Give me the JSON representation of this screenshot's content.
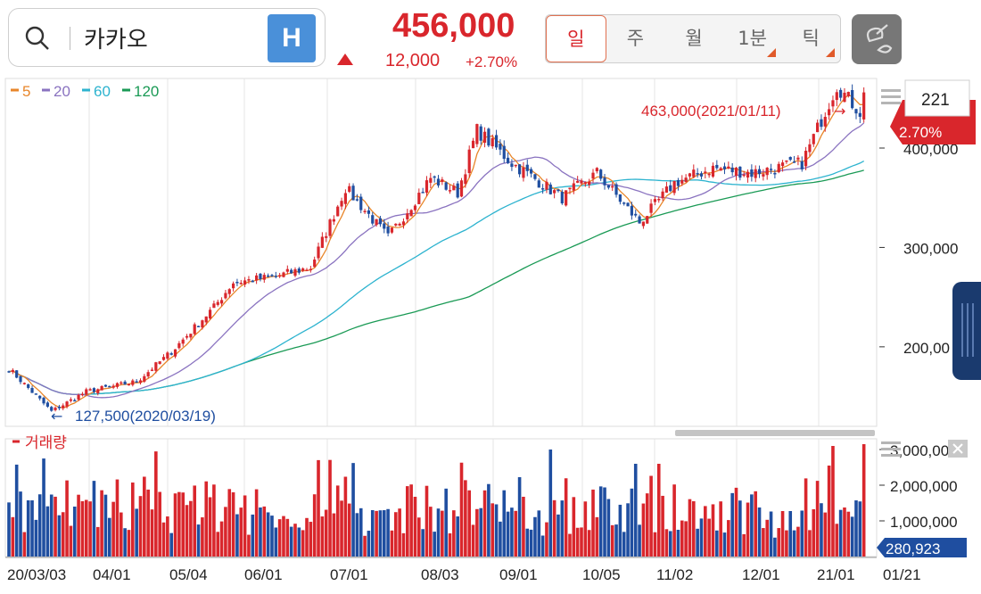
{
  "header": {
    "search_label": "카카오",
    "h_button": "H",
    "price": "456,000",
    "change": "12,000",
    "change_rate": "+2.70%",
    "periods": [
      "일",
      "주",
      "월",
      "1분",
      "틱"
    ],
    "active_period": "일",
    "badge_count": "221",
    "badge_change": "2.70%",
    "volume_legend": "거래량",
    "current_volume": "280,923"
  },
  "colors": {
    "up": "#d9262c",
    "down": "#1f4ea0",
    "ma5": "#e8862a",
    "ma20": "#8a73c0",
    "ma60": "#2db3cf",
    "ma120": "#1a9a55"
  },
  "icons": [
    "search-icon",
    "menu-icon",
    "close-icon",
    "drawing-tool-icon",
    "grip-icon"
  ],
  "chart_data": [
    {
      "type": "candlestick",
      "title": "카카오",
      "legend": [
        "5",
        "20",
        "60",
        "120"
      ],
      "x_ticks": [
        "20/03/03",
        "04/01",
        "05/04",
        "06/01",
        "07/01",
        "08/03",
        "09/01",
        "10/05",
        "11/02",
        "12/01",
        "21/01",
        "01/21"
      ],
      "y_ticks": [
        "400,000",
        "300,000",
        "200,00"
      ],
      "ylim": [
        120000,
        470000
      ],
      "annotations": [
        {
          "text": "463,000(2021/01/11)",
          "value": 463000
        },
        {
          "text": "127,500(2020/03/19)",
          "value": 127500
        }
      ],
      "key_values": {
        "high": 463000,
        "low": 127500,
        "last_close": 456000,
        "change": 12000,
        "change_pct": 2.7
      },
      "close_path": [
        {
          "m": "2020-03-03",
          "close": 178000
        },
        {
          "m": "2020-03-19",
          "close": 135000
        },
        {
          "m": "2020-04-01",
          "close": 155000
        },
        {
          "m": "2020-04-20",
          "close": 165000
        },
        {
          "m": "2020-05-04",
          "close": 195000
        },
        {
          "m": "2020-05-20",
          "close": 240000
        },
        {
          "m": "2020-05-27",
          "close": 265000
        },
        {
          "m": "2020-06-10",
          "close": 270000
        },
        {
          "m": "2020-06-26",
          "close": 280000
        },
        {
          "m": "2020-07-08",
          "close": 360000
        },
        {
          "m": "2020-07-24",
          "close": 310000
        },
        {
          "m": "2020-08-10",
          "close": 370000
        },
        {
          "m": "2020-08-20",
          "close": 355000
        },
        {
          "m": "2020-08-28",
          "close": 418000
        },
        {
          "m": "2020-09-10",
          "close": 385000
        },
        {
          "m": "2020-09-28",
          "close": 350000
        },
        {
          "m": "2020-10-12",
          "close": 375000
        },
        {
          "m": "2020-10-28",
          "close": 325000
        },
        {
          "m": "2020-11-10",
          "close": 365000
        },
        {
          "m": "2020-11-25",
          "close": 380000
        },
        {
          "m": "2020-12-10",
          "close": 375000
        },
        {
          "m": "2020-12-28",
          "close": 385000
        },
        {
          "m": "2021-01-11",
          "close": 463000
        },
        {
          "m": "2021-01-19",
          "close": 436000
        },
        {
          "m": "2021-01-21",
          "close": 456000
        }
      ]
    },
    {
      "type": "bar",
      "title": "거래량",
      "y_ticks": [
        "3,000,000",
        "2,000,000",
        "1,000,000"
      ],
      "ylim": [
        0,
        3300000
      ],
      "current_value": 280923
    }
  ]
}
